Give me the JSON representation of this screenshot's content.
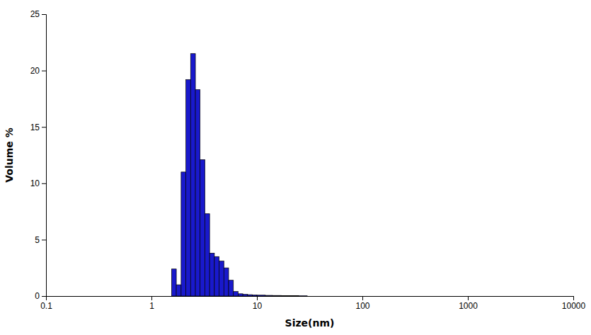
{
  "chart_data": {
    "type": "histogram",
    "xlabel": "Size(nm)",
    "ylabel": "Volume %",
    "color": "#1919cc",
    "log": "x",
    "grid": false,
    "bins": [
      1.55,
      1.72,
      1.91,
      2.12,
      2.35,
      2.61,
      2.89,
      3.21,
      3.56,
      3.95,
      4.38,
      4.86,
      5.39,
      5.98,
      6.63,
      7.36,
      8.16,
      9.05,
      10.0,
      12.0,
      14.0,
      17.0,
      20.0,
      25.0,
      30.0
    ],
    "values": [
      2.4,
      1.0,
      11.0,
      19.2,
      21.5,
      18.3,
      12.1,
      7.3,
      3.8,
      3.5,
      3.1,
      2.5,
      1.4,
      0.4,
      0.2,
      0.15,
      0.12,
      0.1,
      0.08,
      0.06,
      0.05,
      0.04,
      0.03,
      0.02
    ],
    "xlim": [
      0.1,
      10000
    ],
    "xticks": [
      0.1,
      1,
      10,
      100,
      1000,
      10000
    ],
    "ylim": [
      0,
      25
    ],
    "yticks": [
      0,
      5,
      10,
      15,
      20,
      25
    ]
  }
}
